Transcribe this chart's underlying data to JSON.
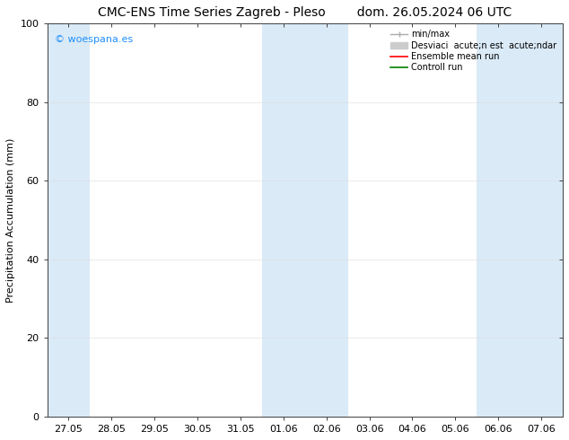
{
  "title_left": "CMC-ENS Time Series Zagreb - Pleso",
  "title_right": "dom. 26.05.2024 06 UTC",
  "ylabel": "Precipitation Accumulation (mm)",
  "ylim": [
    0,
    100
  ],
  "yticks": [
    0,
    20,
    40,
    60,
    80,
    100
  ],
  "xtick_labels": [
    "27.05",
    "28.05",
    "29.05",
    "30.05",
    "31.05",
    "01.06",
    "02.06",
    "03.06",
    "04.06",
    "05.06",
    "06.06",
    "07.06"
  ],
  "bg_color": "#ffffff",
  "plot_bg_color": "#ffffff",
  "shade_color": "#daeaf7",
  "shaded_columns": [
    0,
    5,
    6,
    10
  ],
  "watermark_text": "© woespana.es",
  "watermark_color": "#1e90ff",
  "legend_label_minmax": "min/max",
  "legend_label_std": "Desviaci  acute;n est  acute;ndar",
  "legend_label_ens": "Ensemble mean run",
  "legend_label_ctrl": "Controll run",
  "legend_color_minmax": "#aaaaaa",
  "legend_color_std": "#cccccc",
  "legend_color_ens": "#ff0000",
  "legend_color_ctrl": "#008000",
  "title_fontsize": 10,
  "tick_fontsize": 8,
  "ylabel_fontsize": 8,
  "watermark_fontsize": 8,
  "legend_fontsize": 7,
  "grid_color": "#dddddd",
  "grid_alpha": 0.7
}
